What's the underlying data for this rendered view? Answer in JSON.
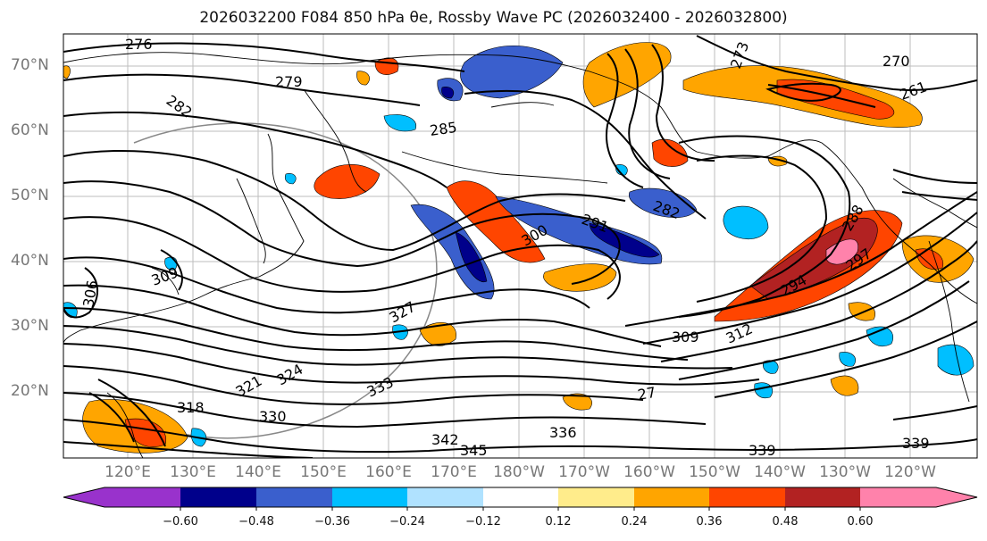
{
  "title": "2026032200 F084 850 hPa θe, Rossby Wave PC (2026032400 - 2026032800)",
  "lat_labels": [
    "70°N",
    "60°N",
    "50°N",
    "40°N",
    "30°N",
    "20°N"
  ],
  "lon_labels": [
    "120°E",
    "130°E",
    "140°E",
    "150°E",
    "160°E",
    "170°E",
    "180°W",
    "170°W",
    "160°W",
    "150°W",
    "140°W",
    "130°W",
    "120°W"
  ],
  "contour_labels": [
    "276",
    "279",
    "282",
    "285",
    "273",
    "270",
    "261",
    "291",
    "282",
    "300",
    "288",
    "294",
    "297",
    "309",
    "312",
    "306",
    "309",
    "318",
    "321",
    "324",
    "327",
    "330",
    "333",
    "336",
    "342",
    "345",
    "339",
    "339",
    "27"
  ],
  "colorbar": {
    "ticks": [
      "−0.60",
      "−0.48",
      "−0.36",
      "−0.24",
      "−0.12",
      "0.12",
      "0.24",
      "0.36",
      "0.48",
      "0.60"
    ],
    "colors": [
      "#9932cc",
      "#00008b",
      "#3a5fcd",
      "#00bfff",
      "#b0e2ff",
      "#ffffff",
      "#ffec8b",
      "#ffa500",
      "#ff4500",
      "#b22222",
      "#ff82ab"
    ]
  },
  "fill_colors": {
    "neg_strong": "#00008b",
    "neg_mid": "#3a5fcd",
    "neg_weak": "#00bfff",
    "neg_faint": "#b0e2ff",
    "pos_faint": "#ffec8b",
    "pos_weak": "#ffa500",
    "pos_mid": "#ff4500",
    "pos_strong": "#b22222",
    "pos_max": "#ff82ab"
  }
}
